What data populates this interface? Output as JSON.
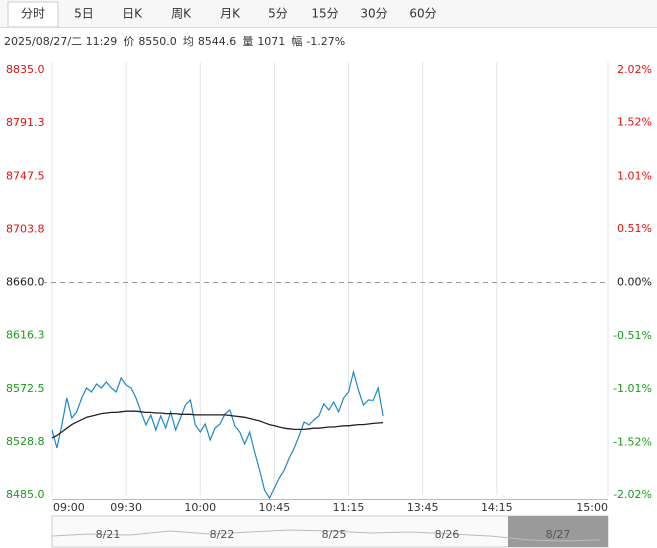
{
  "tabs": [
    "分时",
    "5日",
    "日K",
    "周K",
    "月K",
    "5分",
    "15分",
    "30分",
    "60分"
  ],
  "info": {
    "datetime": "2025/08/27/二 11:29",
    "fields": [
      {
        "label": "价",
        "value": "8550.0"
      },
      {
        "label": "均",
        "value": "8544.6"
      },
      {
        "label": "量",
        "value": "1071"
      },
      {
        "label": "幅",
        "value": "-1.27%"
      }
    ]
  },
  "chart_data": {
    "type": "line",
    "x": [
      0,
      2,
      4,
      6,
      8,
      10,
      12,
      14,
      16,
      18,
      20,
      22,
      24,
      26,
      28,
      30,
      32,
      34,
      36,
      38,
      40,
      42,
      44,
      46,
      48,
      50,
      52,
      54,
      56,
      58,
      60,
      62,
      64,
      66,
      68,
      70,
      72,
      74,
      76,
      78,
      80,
      82,
      84,
      86,
      88,
      90,
      92,
      94,
      96,
      98,
      100,
      102,
      104,
      106,
      108,
      110,
      112,
      114,
      116,
      118,
      120,
      122,
      124,
      126,
      128,
      130,
      132,
      134
    ],
    "series": [
      {
        "name": "价",
        "color": "#1f87c6",
        "values": [
          8538.5,
          8523.7,
          8542.7,
          8564.9,
          8548.4,
          8553.4,
          8564.9,
          8573.1,
          8569.8,
          8576.4,
          8573.1,
          8578.1,
          8573.1,
          8569.8,
          8581.4,
          8575.6,
          8573.1,
          8564.9,
          8553.4,
          8542.7,
          8550.9,
          8538.5,
          8550.1,
          8540.2,
          8553.4,
          8538.5,
          8548.4,
          8559.1,
          8563.2,
          8542.7,
          8536.9,
          8543.5,
          8530.3,
          8540.2,
          8543.5,
          8551.7,
          8555.0,
          8541.8,
          8536.9,
          8527.0,
          8536.9,
          8520.4,
          8505.6,
          8489.1,
          8482.5,
          8490.8,
          8499.0,
          8505.6,
          8515.5,
          8523.7,
          8533.6,
          8545.1,
          8542.7,
          8546.8,
          8550.1,
          8560.1,
          8555.0,
          8561.6,
          8553.4,
          8564.9,
          8569.8,
          8586.3,
          8571.5,
          8559.1,
          8563.2,
          8563.0,
          8573.1,
          8550.0
        ]
      },
      {
        "name": "均",
        "color": "#222222",
        "values": [
          8532,
          8534,
          8537,
          8540,
          8543,
          8545,
          8547,
          8549,
          8550,
          8551,
          8552,
          8552.5,
          8553,
          8553,
          8553.5,
          8554,
          8554,
          8554,
          8553.5,
          8553,
          8553,
          8552.5,
          8552.5,
          8552,
          8552,
          8552,
          8551.5,
          8551.5,
          8551.5,
          8551,
          8551,
          8551,
          8551,
          8551,
          8551,
          8551,
          8550.5,
          8550,
          8549.5,
          8549,
          8548,
          8547,
          8546,
          8544.5,
          8543,
          8542,
          8541,
          8540,
          8539.5,
          8539,
          8539,
          8539,
          8539.5,
          8540,
          8540,
          8540.5,
          8541,
          8541,
          8541.5,
          8542,
          8542,
          8542.5,
          8543,
          8543,
          8543.5,
          8544,
          8544.3,
          8544.6
        ]
      }
    ],
    "xlim": [
      0,
      225
    ],
    "xticks": [
      {
        "value": 0,
        "label": "09:00"
      },
      {
        "value": 30,
        "label": "09:30"
      },
      {
        "value": 60,
        "label": "10:00"
      },
      {
        "value": 90,
        "label": "10:45"
      },
      {
        "value": 120,
        "label": "11:15"
      },
      {
        "value": 150,
        "label": "13:45"
      },
      {
        "value": 180,
        "label": "14:15"
      },
      {
        "value": 225,
        "label": "15:00"
      }
    ],
    "ylim": [
      8485,
      8835
    ],
    "yticks": [
      {
        "value": 8835,
        "label": "8835.0"
      },
      8791.3,
      8747.5,
      8703.8,
      {
        "value": 8660,
        "label": "8660.0"
      },
      8616.3,
      8572.5,
      8528.8,
      {
        "value": 8485,
        "label": "8485.0"
      }
    ],
    "y2lim": [
      -2.02,
      2.02
    ],
    "y2ticks": [
      {
        "value": 2.02,
        "label": "2.02%"
      },
      {
        "value": 1.52,
        "label": "1.52%"
      },
      {
        "value": 1.01,
        "label": "1.01%"
      },
      {
        "value": 0.51,
        "label": "0.51%"
      },
      {
        "value": 0,
        "label": "0.00%"
      },
      {
        "value": -0.51,
        "label": "-0.51%"
      },
      {
        "value": -1.01,
        "label": "-1.01%"
      },
      {
        "value": -1.52,
        "label": "-1.52%"
      },
      {
        "value": -2.02,
        "label": "-2.02%"
      }
    ],
    "reference_line": 8660,
    "up_color": "#e01010",
    "down_color": "#1a9a1a",
    "flat_color": "#222222",
    "navigator_dates": [
      "8/21",
      "8/22",
      "8/25",
      "8/26",
      "8/27"
    ]
  }
}
